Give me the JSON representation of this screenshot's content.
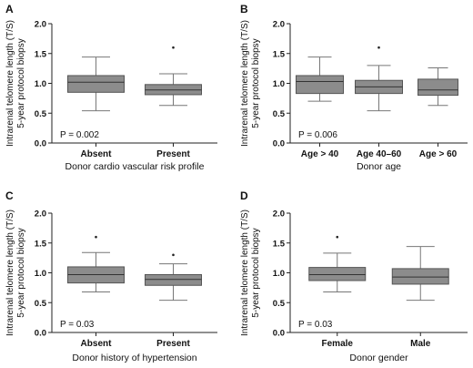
{
  "chart_data": [
    {
      "panel": "A",
      "type": "box",
      "ylabel": [
        "Intrarenal telomere length (T/S)",
        "5-year protocol biopsy"
      ],
      "xlabel": "Donor cardio vascular risk profile",
      "yticks": [
        "0.0",
        "0.5",
        "1.0",
        "1.5",
        "2.0"
      ],
      "ylim": [
        0,
        2.0
      ],
      "pvalue": "P = 0.002",
      "categories": [
        "Absent",
        "Present"
      ],
      "boxes": [
        {
          "min": 0.54,
          "q1": 0.85,
          "median": 1.02,
          "q3": 1.13,
          "max": 1.44,
          "outliers": []
        },
        {
          "min": 0.63,
          "q1": 0.81,
          "median": 0.89,
          "q3": 0.98,
          "max": 1.16,
          "outliers": [
            1.6
          ]
        }
      ]
    },
    {
      "panel": "B",
      "type": "box",
      "ylabel": [
        "Intrarenal telomere length (T/S)",
        "5-year protocol biopsy"
      ],
      "xlabel": "Donor age",
      "yticks": [
        "0.0",
        "0.5",
        "1.0",
        "1.5",
        "2.0"
      ],
      "ylim": [
        0,
        2.0
      ],
      "pvalue": "P = 0.006",
      "categories": [
        "Age > 40",
        "Age 40–60",
        "Age > 60"
      ],
      "boxes": [
        {
          "min": 0.7,
          "q1": 0.83,
          "median": 1.03,
          "q3": 1.13,
          "max": 1.44,
          "outliers": []
        },
        {
          "min": 0.54,
          "q1": 0.83,
          "median": 0.94,
          "q3": 1.05,
          "max": 1.3,
          "outliers": [
            1.6
          ]
        },
        {
          "min": 0.63,
          "q1": 0.8,
          "median": 0.89,
          "q3": 1.07,
          "max": 1.26,
          "outliers": []
        }
      ]
    },
    {
      "panel": "C",
      "type": "box",
      "ylabel": [
        "Intrarenal telomere length (T/S)",
        "5-year protocol biopsy"
      ],
      "xlabel": "Donor history of hypertension",
      "yticks": [
        "0.0",
        "0.5",
        "1.0",
        "1.5",
        "2.0"
      ],
      "ylim": [
        0,
        2.0
      ],
      "pvalue": "P = 0.03",
      "categories": [
        "Absent",
        "Present"
      ],
      "boxes": [
        {
          "min": 0.68,
          "q1": 0.83,
          "median": 0.97,
          "q3": 1.1,
          "max": 1.34,
          "outliers": [
            1.6
          ]
        },
        {
          "min": 0.54,
          "q1": 0.79,
          "median": 0.89,
          "q3": 0.97,
          "max": 1.15,
          "outliers": [
            1.3
          ]
        }
      ]
    },
    {
      "panel": "D",
      "type": "box",
      "ylabel": [
        "Intrarenal telomere length (T/S)",
        "5-year protocol biopsy"
      ],
      "xlabel": "Donor gender",
      "yticks": [
        "0.0",
        "0.5",
        "1.0",
        "1.5",
        "2.0"
      ],
      "ylim": [
        0,
        2.0
      ],
      "pvalue": "P = 0.03",
      "categories": [
        "Female",
        "Male"
      ],
      "boxes": [
        {
          "min": 0.68,
          "q1": 0.87,
          "median": 0.97,
          "q3": 1.09,
          "max": 1.33,
          "outliers": [
            1.6
          ]
        },
        {
          "min": 0.54,
          "q1": 0.81,
          "median": 0.93,
          "q3": 1.07,
          "max": 1.44,
          "outliers": []
        }
      ]
    }
  ]
}
